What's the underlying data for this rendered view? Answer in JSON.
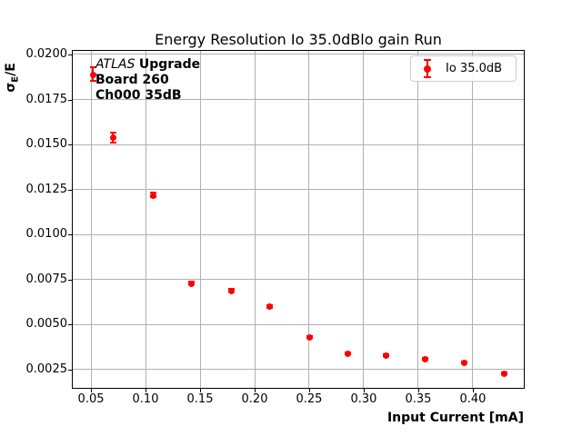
{
  "chart_data": {
    "type": "scatter",
    "title": "Energy Resolution Io 35.0dBlo gain Run",
    "xlabel": "Input Current [mA]",
    "ylabel": "σE/E",
    "ylabel_parts": {
      "sigma": "σ",
      "subscript": "E",
      "rest": "/E"
    },
    "xlim": [
      0.0333,
      0.4467
    ],
    "ylim": [
      0.00148,
      0.0202
    ],
    "grid": true,
    "legend_position": "upper right",
    "x_ticks": [
      {
        "value": 0.05,
        "label": "0.05"
      },
      {
        "value": 0.1,
        "label": "0.10"
      },
      {
        "value": 0.15,
        "label": "0.15"
      },
      {
        "value": 0.2,
        "label": "0.20"
      },
      {
        "value": 0.25,
        "label": "0.25"
      },
      {
        "value": 0.3,
        "label": "0.30"
      },
      {
        "value": 0.35,
        "label": "0.35"
      },
      {
        "value": 0.4,
        "label": "0.40"
      }
    ],
    "y_ticks": [
      {
        "value": 0.02,
        "label": "0.0200"
      },
      {
        "value": 0.0175,
        "label": "0.0175"
      },
      {
        "value": 0.015,
        "label": "0.0150"
      },
      {
        "value": 0.0125,
        "label": "0.0125"
      },
      {
        "value": 0.01,
        "label": "0.0100"
      },
      {
        "value": 0.0075,
        "label": "0.0075"
      },
      {
        "value": 0.005,
        "label": "0.0050"
      },
      {
        "value": 0.0025,
        "label": "0.0025"
      }
    ],
    "series": [
      {
        "name": "Io 35.0dB",
        "color": "#ff0000",
        "marker": "circle-with-errorbar",
        "points": [
          {
            "x": 0.052,
            "y": 0.0189,
            "yerr": 0.00038
          },
          {
            "x": 0.07,
            "y": 0.0154,
            "yerr": 0.00028
          },
          {
            "x": 0.107,
            "y": 0.0122,
            "yerr": 0.00012
          },
          {
            "x": 0.142,
            "y": 0.0073,
            "yerr": 8e-05
          },
          {
            "x": 0.178,
            "y": 0.0069,
            "yerr": 8e-05
          },
          {
            "x": 0.213,
            "y": 0.006,
            "yerr": 8e-05
          },
          {
            "x": 0.25,
            "y": 0.0043,
            "yerr": 7e-05
          },
          {
            "x": 0.285,
            "y": 0.0034,
            "yerr": 6e-05
          },
          {
            "x": 0.32,
            "y": 0.0033,
            "yerr": 6e-05
          },
          {
            "x": 0.356,
            "y": 0.0031,
            "yerr": 6e-05
          },
          {
            "x": 0.392,
            "y": 0.0029,
            "yerr": 6e-05
          },
          {
            "x": 0.428,
            "y": 0.0023,
            "yerr": 6e-05
          }
        ]
      }
    ],
    "colors": {
      "point": "#ff0000",
      "grid": "#b0b0b0",
      "spine": "#000000",
      "legend_border": "#cccccc"
    }
  },
  "legend": {
    "label": "Io 35.0dB"
  },
  "annotation": {
    "line1_italic": "ATLAS",
    "line1_bold": "Upgrade",
    "line2": "Board 260",
    "line3": "Ch000 35dB"
  }
}
